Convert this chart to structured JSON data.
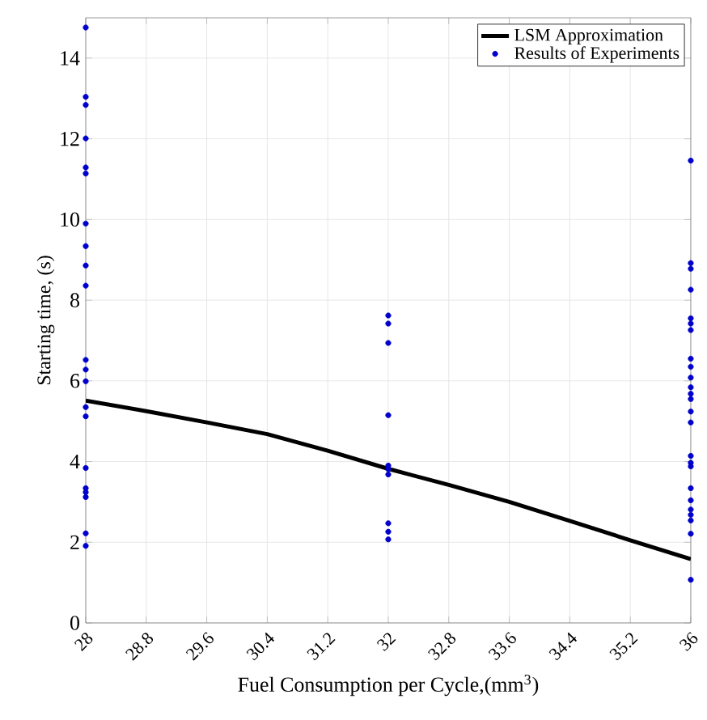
{
  "chart_data": {
    "type": "scatter",
    "xlabel": "Fuel Consumption per Cycle,(mm$^{3}$)",
    "ylabel": "Starting time, (s)",
    "xlim": [
      28,
      36
    ],
    "xticks": [
      28,
      28.8,
      29.6,
      30.4,
      31.2,
      32,
      32.8,
      33.6,
      34.4,
      35.2,
      36
    ],
    "ylim": [
      0,
      15
    ],
    "yticks": [
      0,
      2,
      4,
      6,
      8,
      10,
      12,
      14
    ],
    "grid": true,
    "legend": "top right",
    "marker": "circle",
    "series": [
      {
        "name": "LSM Approximation",
        "type": "line",
        "color": "#000000",
        "line_style": "solid",
        "marker": "none",
        "x": [
          28,
          28.8,
          29.6,
          30.4,
          31.2,
          32,
          32.8,
          33.6,
          34.4,
          35.2,
          36
        ],
        "values": [
          5.51,
          5.25,
          4.97,
          4.68,
          4.27,
          3.82,
          3.42,
          3.0,
          2.53,
          2.05,
          1.58
        ]
      },
      {
        "name": "Results of Experiments",
        "color": "#0000cc",
        "x": [
          28,
          28,
          28,
          28,
          28,
          28,
          28,
          28,
          28,
          28,
          28,
          28,
          28,
          28,
          28,
          28,
          28,
          28,
          28,
          28,
          28,
          32,
          32,
          32,
          32,
          32,
          32,
          32,
          32,
          32,
          32,
          36,
          36,
          36,
          36,
          36,
          36,
          36,
          36,
          36,
          36,
          36,
          36,
          36,
          36,
          36,
          36,
          36,
          36,
          36,
          36,
          36,
          36,
          36,
          36,
          36
        ],
        "values": [
          14.76,
          13.04,
          12.84,
          12.01,
          11.29,
          11.14,
          9.9,
          9.34,
          8.86,
          8.36,
          6.52,
          6.28,
          5.99,
          5.35,
          5.12,
          3.84,
          3.34,
          3.24,
          3.12,
          2.22,
          1.91,
          7.62,
          7.42,
          6.94,
          5.15,
          3.9,
          3.81,
          3.68,
          2.47,
          2.26,
          2.07,
          11.46,
          8.92,
          8.78,
          8.26,
          7.55,
          7.42,
          7.26,
          6.55,
          6.35,
          6.08,
          5.84,
          5.68,
          5.55,
          5.24,
          4.97,
          4.14,
          3.97,
          3.88,
          3.34,
          3.04,
          2.81,
          2.68,
          2.54,
          2.21,
          1.07
        ]
      }
    ]
  }
}
